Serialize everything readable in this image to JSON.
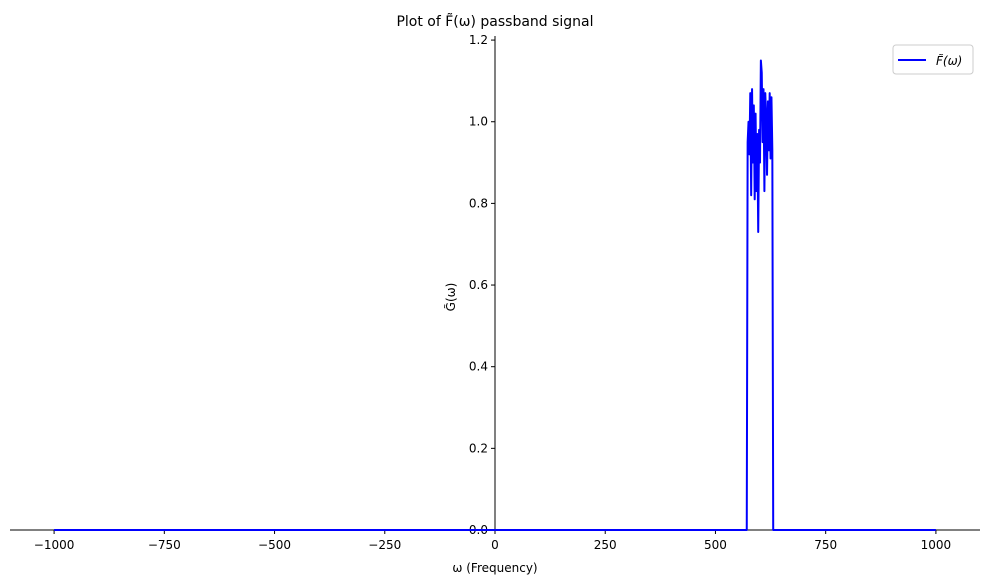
{
  "chart_data": {
    "type": "line",
    "title": "Plot of F̃(ω) passband signal",
    "xlabel": "ω (Frequency)",
    "ylabel": "G̃(ω)",
    "xlim": [
      -1100,
      1100
    ],
    "ylim": [
      0,
      1.21
    ],
    "x_ticks": [
      -1000,
      -750,
      -500,
      -250,
      0,
      250,
      500,
      750,
      1000
    ],
    "x_tick_labels": [
      "−1000",
      "−750",
      "−500",
      "−250",
      "0",
      "250",
      "500",
      "750",
      "1000"
    ],
    "y_ticks": [
      0.0,
      0.2,
      0.4,
      0.6,
      0.8,
      1.0,
      1.2
    ],
    "y_tick_labels": [
      "0.0",
      "0.2",
      "0.4",
      "0.6",
      "0.8",
      "1.0",
      "1.2"
    ],
    "grid": false,
    "legend_position": "top-right",
    "series": [
      {
        "name": "F̃(ω)",
        "color": "#0000ff",
        "x": [
          -1000,
          571,
          573,
          575,
          577,
          579,
          581,
          583,
          585,
          587,
          589,
          591,
          593,
          595,
          597,
          599,
          601,
          603,
          605,
          607,
          609,
          611,
          613,
          615,
          617,
          619,
          621,
          623,
          625,
          627,
          629,
          631,
          633,
          1000
        ],
        "y": [
          0.0,
          0.0,
          0.95,
          1.0,
          0.92,
          1.07,
          0.82,
          1.08,
          0.9,
          1.04,
          0.81,
          1.02,
          0.83,
          0.97,
          0.73,
          0.98,
          0.9,
          1.15,
          1.12,
          0.95,
          1.08,
          0.83,
          1.07,
          1.01,
          0.87,
          1.05,
          0.93,
          1.07,
          0.91,
          1.06,
          0.93,
          0.0,
          0.0,
          0.0
        ]
      }
    ]
  }
}
